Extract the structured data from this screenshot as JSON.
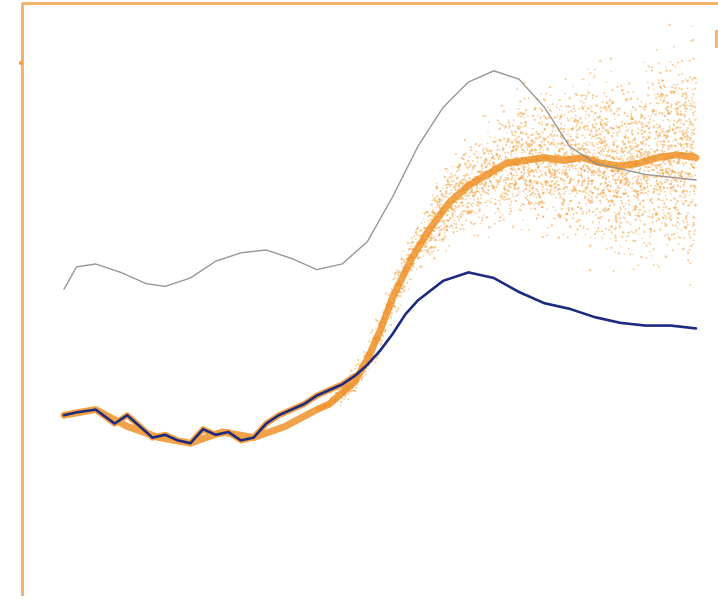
{
  "colors": {
    "frame": "#f6b36e",
    "gray_line": "#8c8c8c",
    "navy_line": "#1c2a82",
    "orange": "#f4a040",
    "orange_dark": "#ee8c1e",
    "background": "#ffffff"
  },
  "chart_data": {
    "type": "line",
    "xlim": [
      0,
      100
    ],
    "ylim": [
      0,
      100
    ],
    "grid": false,
    "legend": "none",
    "series": [
      {
        "x": [
          0,
          2,
          5,
          9,
          13,
          16,
          20,
          24,
          28,
          32,
          36,
          40,
          44,
          48,
          52,
          56,
          60,
          64,
          68,
          72,
          76,
          80,
          84,
          88,
          92,
          96,
          100
        ],
        "y": [
          55.5,
          59.5,
          60,
          58.5,
          56.5,
          56,
          57.5,
          60.5,
          62,
          62.5,
          61,
          59,
          60,
          64,
          72,
          81,
          88,
          92.5,
          94.5,
          93,
          88,
          81,
          78,
          77,
          76,
          75.5,
          75
        ]
      },
      {
        "x": [
          0,
          2,
          5,
          8,
          10,
          12,
          14,
          16,
          18,
          20,
          22,
          24,
          26,
          28,
          30,
          32,
          34,
          36,
          38,
          40,
          42,
          44,
          46,
          48,
          50,
          52,
          54,
          56,
          60,
          64,
          68,
          72,
          76,
          80,
          84,
          88,
          92,
          96,
          100
        ],
        "y": [
          33,
          33.5,
          34,
          31.5,
          33,
          31,
          29,
          29.5,
          28.5,
          28,
          30.5,
          29.5,
          30,
          28.5,
          29,
          31.5,
          33,
          34,
          35,
          36.5,
          37.5,
          38.5,
          40,
          42,
          44.5,
          47.5,
          51,
          53.5,
          57,
          58.5,
          57.5,
          55,
          53,
          52,
          50.5,
          49.5,
          49,
          49,
          48.5
        ]
      },
      {
        "x": [
          0,
          5,
          10,
          15,
          20,
          25,
          30,
          35,
          40,
          42,
          44,
          46,
          48,
          50,
          52,
          55,
          58,
          61,
          64,
          67,
          70,
          73,
          76,
          79,
          82,
          85,
          88,
          91,
          94,
          97,
          100
        ],
        "y": [
          33,
          34,
          31,
          29,
          28,
          30,
          29,
          31,
          34,
          35,
          37,
          39,
          43,
          48,
          54,
          61,
          66.5,
          71,
          74,
          76,
          78,
          78.5,
          79,
          78.5,
          79,
          78,
          77.5,
          78,
          79,
          79.5,
          79
        ],
        "spread": [
          0,
          0,
          0,
          0,
          0,
          0,
          0,
          0,
          0.5,
          1,
          2,
          2.5,
          3,
          3.5,
          4,
          5,
          6,
          7,
          8,
          9,
          10,
          11,
          12,
          13,
          14,
          15,
          16,
          17,
          18,
          18.5,
          19
        ]
      }
    ]
  }
}
